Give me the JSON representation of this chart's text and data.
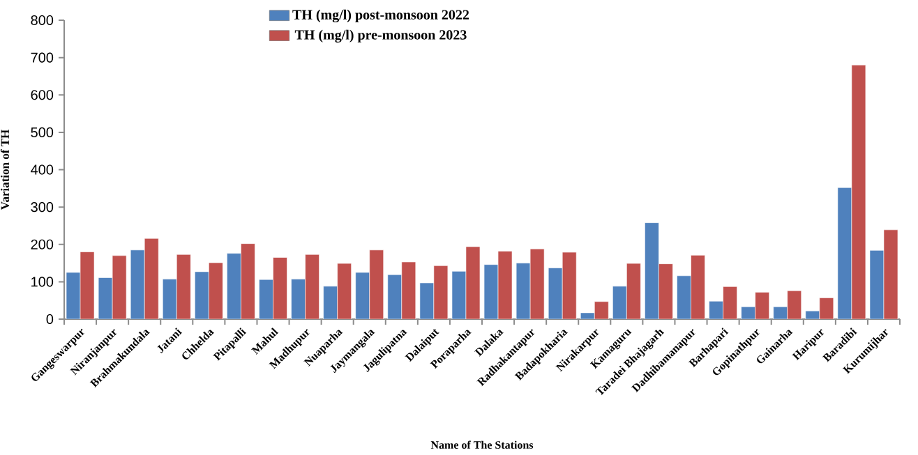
{
  "chart_data": {
    "type": "bar",
    "xlabel": "Name of The Stations",
    "ylabel": "Variation of TH",
    "categories": [
      "Gangeswarpur",
      "Niranjanpur",
      "Brahmakundala",
      "Jatani",
      "Chhelda",
      "Pitapalli",
      "Mahul",
      "Madhupur",
      "Nuaparha",
      "Jaymangala",
      "Jagulipatna",
      "Dalaiput",
      "Poraparha",
      "Dalaka",
      "Radhakantapur",
      "Badapokharia",
      "Nirakarpur",
      "Kamaguru",
      "Taradei Bhajagarh",
      "Dadhibamanapur",
      "Barhapari",
      "Gopinathpur",
      "Gainarha",
      "Haripur",
      "Baradibi",
      "Kurumijhar"
    ],
    "series": [
      {
        "name": "TH (mg/l) post-monsoon 2022",
        "color": "#4f81bd",
        "values": [
          125,
          111,
          185,
          107,
          127,
          176,
          106,
          107,
          88,
          125,
          119,
          97,
          128,
          146,
          150,
          137,
          17,
          88,
          258,
          116,
          48,
          33,
          33,
          22,
          352,
          184
        ]
      },
      {
        "name": "TH (mg/l) pre-monsoon 2023",
        "color": "#c0504d",
        "values": [
          180,
          170,
          216,
          173,
          151,
          202,
          165,
          173,
          149,
          185,
          153,
          143,
          194,
          182,
          188,
          179,
          47,
          149,
          148,
          171,
          87,
          72,
          76,
          57,
          680,
          239
        ]
      }
    ],
    "ylim": [
      0,
      800
    ],
    "yticks": [
      0,
      100,
      200,
      300,
      400,
      500,
      600,
      700,
      800
    ],
    "legend": "top"
  }
}
